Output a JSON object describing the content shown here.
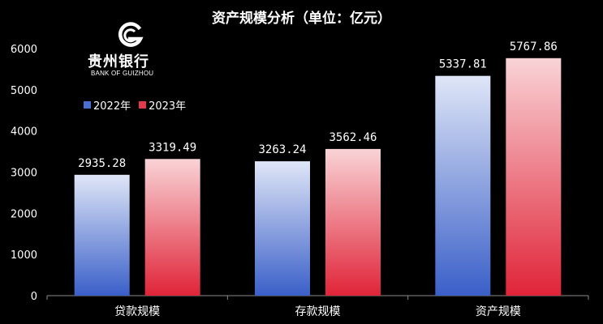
{
  "brand": {
    "name": "贵州银行",
    "subtitle": "BANK OF GUIZHOU"
  },
  "colors": {
    "background": "#000000",
    "series_2022_top": "#dfe6f7",
    "series_2022_bottom": "#3a5fc8",
    "series_2023_top": "#f9d3d6",
    "series_2023_bottom": "#e02438"
  },
  "chart_data": {
    "type": "bar",
    "title": "资产规模分析（单位：亿元）",
    "xlabel": "",
    "ylabel": "",
    "categories": [
      "贷款规模",
      "存款规模",
      "资产规模"
    ],
    "series": [
      {
        "name": "2022年",
        "values": [
          2935.28,
          3263.24,
          5337.81
        ],
        "labels": [
          "2935.28",
          "3263.24",
          "5337.81"
        ]
      },
      {
        "name": "2023年",
        "values": [
          3319.49,
          3562.46,
          5767.86
        ],
        "labels": [
          "3319.49",
          "3562.46",
          "5767.86"
        ]
      }
    ],
    "ylim": [
      0,
      6000
    ],
    "yticks": [
      0,
      1000,
      2000,
      3000,
      4000,
      5000,
      6000
    ],
    "ytick_labels": [
      "0",
      "1000",
      "2000",
      "3000",
      "4000",
      "5000",
      "6000"
    ],
    "grid": false,
    "legend_position": "top-left"
  }
}
